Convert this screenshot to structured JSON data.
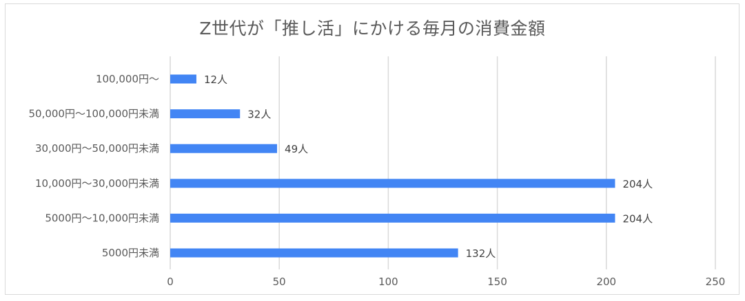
{
  "chart_data": {
    "type": "bar",
    "orientation": "horizontal",
    "title": "Z世代が「推し活」にかける毎月の消費金額",
    "categories": [
      "100,000円～",
      "50,000円～100,000円未満",
      "30,000円～50,000円未満",
      "10,000円～30,000円未満",
      "5000円～10,000円未満",
      "5000円未満"
    ],
    "values": [
      12,
      32,
      49,
      204,
      204,
      132
    ],
    "data_labels": [
      "12人",
      "32人",
      "49人",
      "204人",
      "204人",
      "132人"
    ],
    "xlabel": "",
    "ylabel": "",
    "xlim": [
      0,
      250
    ],
    "x_ticks": [
      "0",
      "50",
      "100",
      "150",
      "200",
      "250"
    ],
    "grid": "vertical",
    "legend": "none",
    "bar_color": "#4285f4"
  }
}
